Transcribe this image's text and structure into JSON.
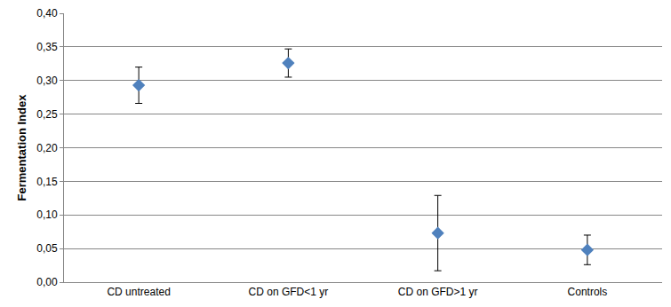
{
  "chart_data": {
    "type": "scatter",
    "y_label": "Fermentation Index",
    "categories": [
      "CD untreated",
      "CD on GFD<1 yr",
      "CD on GFD>1 yr",
      "Controls"
    ],
    "values": [
      0.293,
      0.326,
      0.073,
      0.048
    ],
    "errors": [
      0.027,
      0.021,
      0.056,
      0.022
    ],
    "color": "#4f81bd",
    "marker": "diamond",
    "ylim": [
      0,
      0.4
    ],
    "yticks": [
      {
        "value": 0,
        "label": "0,00"
      },
      {
        "value": 0.05,
        "label": "0,05"
      },
      {
        "value": 0.1,
        "label": "0,10"
      },
      {
        "value": 0.15,
        "label": "0,15"
      },
      {
        "value": 0.2,
        "label": "0,20"
      },
      {
        "value": 0.25,
        "label": "0,25"
      },
      {
        "value": 0.3,
        "label": "0,30"
      },
      {
        "value": 0.35,
        "label": "0,35"
      },
      {
        "value": 0.4,
        "label": "0,40"
      }
    ],
    "grid": true
  }
}
